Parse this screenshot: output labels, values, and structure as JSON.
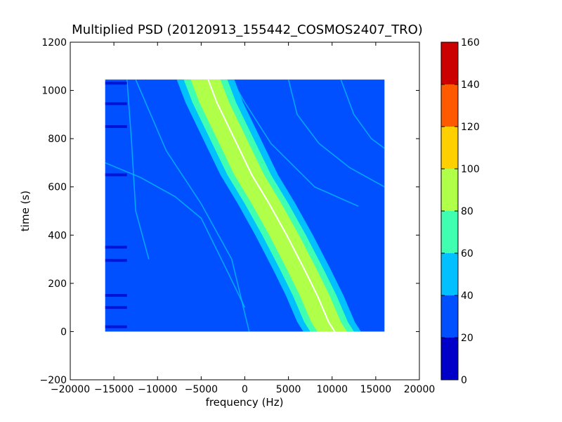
{
  "chart_data": {
    "type": "heatmap",
    "title": "Multiplied PSD (20120913_155442_COSMOS2407_TRO)",
    "xlabel": "frequency (Hz)",
    "ylabel": "time (s)",
    "xlim": [
      -20000,
      20000
    ],
    "ylim": [
      -200,
      1200
    ],
    "xticks": [
      -20000,
      -15000,
      -10000,
      -5000,
      0,
      5000,
      10000,
      15000,
      20000
    ],
    "xtick_labels": [
      "−20000",
      "−15000",
      "−10000",
      "−5000",
      "0",
      "5000",
      "10000",
      "15000",
      "20000"
    ],
    "yticks": [
      -200,
      0,
      200,
      400,
      600,
      800,
      1000,
      1200
    ],
    "ytick_labels": [
      "−200",
      "0",
      "200",
      "400",
      "600",
      "800",
      "1000",
      "1200"
    ],
    "data_extent": {
      "x": [
        -16000,
        16000
      ],
      "y": [
        0,
        1045
      ]
    },
    "background_level": 30,
    "main_trace": {
      "description_points": [
        [
          -4500,
          1045
        ],
        [
          -3500,
          950
        ],
        [
          -1500,
          800
        ],
        [
          500,
          650
        ],
        [
          2500,
          530
        ],
        [
          4500,
          400
        ],
        [
          6500,
          260
        ],
        [
          8000,
          150
        ],
        [
          9300,
          40
        ],
        [
          10000,
          0
        ]
      ],
      "core_level": 90,
      "inner_half_width_hz": 1700,
      "mid_half_width_hz": 2500,
      "outer_half_width_hz": 3300,
      "ridge_color": "#ffffff"
    },
    "colorbar": {
      "levels": [
        0,
        20,
        40,
        60,
        80,
        100,
        120,
        140,
        160
      ],
      "tick_labels": [
        "0",
        "20",
        "40",
        "60",
        "80",
        "100",
        "120",
        "140",
        "160"
      ],
      "colors": [
        "#0000c8",
        "#0050ff",
        "#00c0ff",
        "#40ffb0",
        "#b0ff48",
        "#ffd000",
        "#ff5a00",
        "#cc0000"
      ]
    },
    "grid": false
  }
}
